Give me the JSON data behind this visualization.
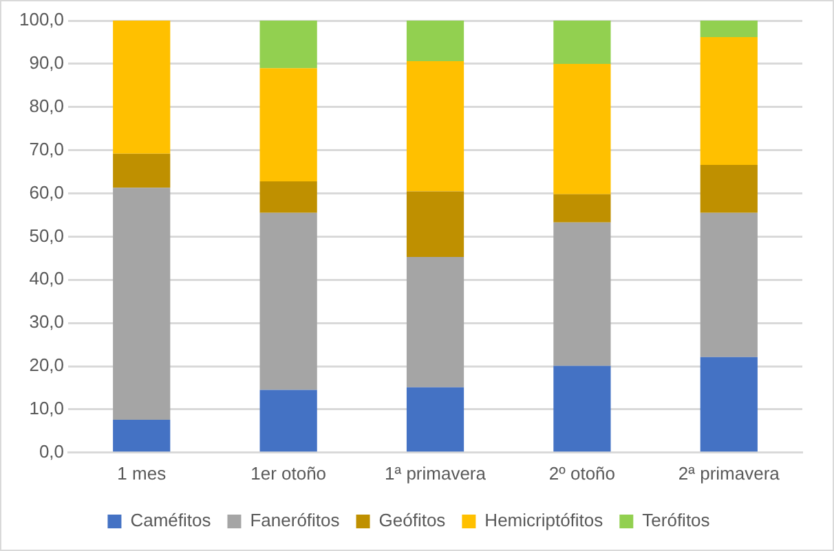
{
  "chart_data": {
    "type": "bar",
    "stacked": true,
    "categories": [
      "1 mes",
      "1er otoño",
      "1ª primavera",
      "2º otoño",
      "2ª primavera"
    ],
    "series": [
      {
        "name": "Caméfitos",
        "color": "#4472c4",
        "values": [
          7.6,
          14.5,
          15.1,
          20.1,
          22.1
        ]
      },
      {
        "name": "Fanerófitos",
        "color": "#a5a5a5",
        "values": [
          53.7,
          41.0,
          30.2,
          33.2,
          33.4
        ]
      },
      {
        "name": "Geófitos",
        "color": "#bf9000",
        "values": [
          7.9,
          7.3,
          15.2,
          6.5,
          11.1
        ]
      },
      {
        "name": "Hemicriptófitos",
        "color": "#ffc000",
        "values": [
          30.8,
          26.2,
          30.1,
          30.2,
          29.6
        ]
      },
      {
        "name": "Terófitos",
        "color": "#92d050",
        "values": [
          0,
          11.0,
          9.4,
          10.0,
          3.8
        ]
      }
    ],
    "ylim": [
      0,
      100
    ],
    "yticks": [
      {
        "value": 0,
        "label": "0,0"
      },
      {
        "value": 10,
        "label": "10,0"
      },
      {
        "value": 20,
        "label": "20,0"
      },
      {
        "value": 30,
        "label": "30,0"
      },
      {
        "value": 40,
        "label": "40,0"
      },
      {
        "value": 50,
        "label": "50,0"
      },
      {
        "value": 60,
        "label": "60,0"
      },
      {
        "value": 70,
        "label": "70,0"
      },
      {
        "value": 80,
        "label": "80,0"
      },
      {
        "value": 90,
        "label": "90,0"
      },
      {
        "value": 100,
        "label": "100,0"
      }
    ],
    "grid": "y",
    "legend": "bottom"
  }
}
